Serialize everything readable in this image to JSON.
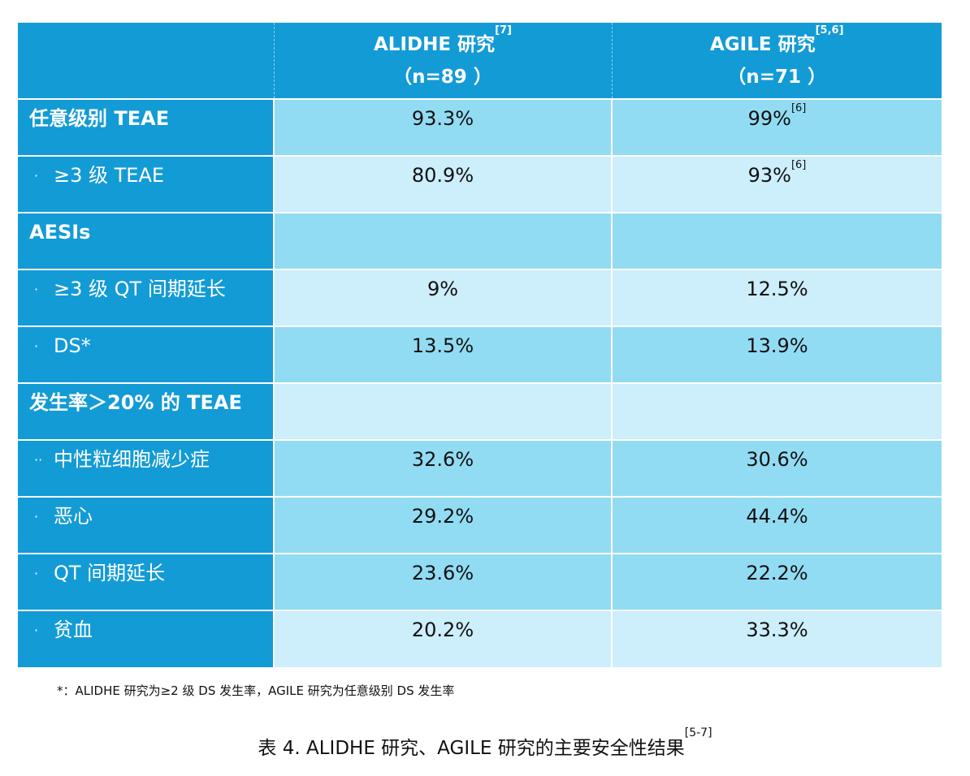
{
  "table": {
    "columns": [
      {
        "name": "ALIDHE 研究",
        "ref": "[7]",
        "n": "（n=89 ）"
      },
      {
        "name": "AGILE 研究",
        "ref": "[5,6]",
        "n": "（n=71 ）"
      }
    ],
    "rows": [
      {
        "label": "任意级别 TEAE",
        "bullet": "",
        "values": [
          "93.3%",
          "99%"
        ],
        "refs": [
          "",
          "[6]"
        ]
      },
      {
        "label": "≥3 级 TEAE",
        "bullet": "·",
        "values": [
          "80.9%",
          "93%"
        ],
        "refs": [
          "",
          "[6]"
        ]
      },
      {
        "label": "AESIs",
        "bullet": "",
        "values": [
          "",
          ""
        ],
        "refs": [
          "",
          ""
        ]
      },
      {
        "label": "≥3 级 QT 间期延长",
        "bullet": "·",
        "values": [
          "9%",
          "12.5%"
        ],
        "refs": [
          "",
          ""
        ]
      },
      {
        "label": "DS*",
        "bullet": "·",
        "values": [
          "13.5%",
          "13.9%"
        ],
        "refs": [
          "",
          ""
        ]
      },
      {
        "label": "发生率＞20% 的 TEAE",
        "bullet": "",
        "values": [
          "",
          ""
        ],
        "refs": [
          "",
          ""
        ]
      },
      {
        "label": "中性粒细胞减少症",
        "bullet": "··",
        "values": [
          "32.6%",
          "30.6%"
        ],
        "refs": [
          "",
          ""
        ]
      },
      {
        "label": "恶心",
        "bullet": "·",
        "values": [
          "29.2%",
          "44.4%"
        ],
        "refs": [
          "",
          ""
        ]
      },
      {
        "label": "QT 间期延长",
        "bullet": "·",
        "values": [
          "23.6%",
          "22.2%"
        ],
        "refs": [
          "",
          ""
        ]
      },
      {
        "label": "贫血",
        "bullet": "·",
        "values": [
          "20.2%",
          "33.3%"
        ],
        "refs": [
          "",
          ""
        ]
      }
    ]
  },
  "footnote": "*：ALIDHE 研究为≥2 级 DS 发生率，AGILE 研究为任意级别 DS 发生率",
  "caption": {
    "text": "表 4. ALIDHE 研究、AGILE 研究的主要安全性结果",
    "ref": "[5-7]"
  },
  "colors": {
    "header_blue": "#139bd6",
    "cell_dark": "#92dcf3",
    "cell_light": "#cdeefb"
  }
}
